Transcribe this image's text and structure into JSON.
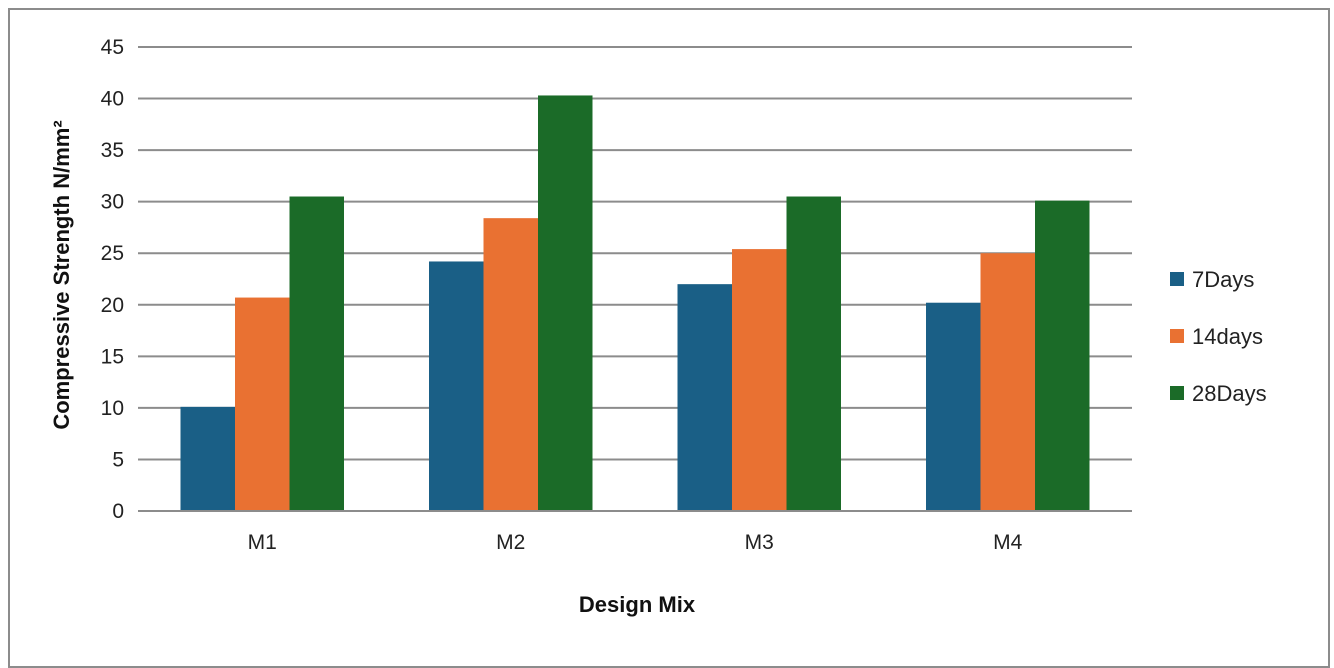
{
  "chart_data": {
    "type": "bar",
    "title": "",
    "xlabel": "Design Mix",
    "ylabel": "Compressive Strength N/mm²",
    "categories": [
      "M1",
      "M2",
      "M3",
      "M4"
    ],
    "series": [
      {
        "name": "7Days",
        "color": "#1a5f86",
        "values": [
          10.1,
          24.2,
          22.0,
          20.2
        ]
      },
      {
        "name": "14days",
        "color": "#e97132",
        "values": [
          20.7,
          28.4,
          25.4,
          25.0
        ]
      },
      {
        "name": "28Days",
        "color": "#1b6b28",
        "values": [
          30.5,
          40.3,
          30.5,
          30.1
        ]
      }
    ],
    "ylim": [
      0,
      45
    ],
    "yticks": [
      0,
      5,
      10,
      15,
      20,
      25,
      30,
      35,
      40,
      45
    ],
    "grid": "horizontal",
    "legend": "right"
  }
}
